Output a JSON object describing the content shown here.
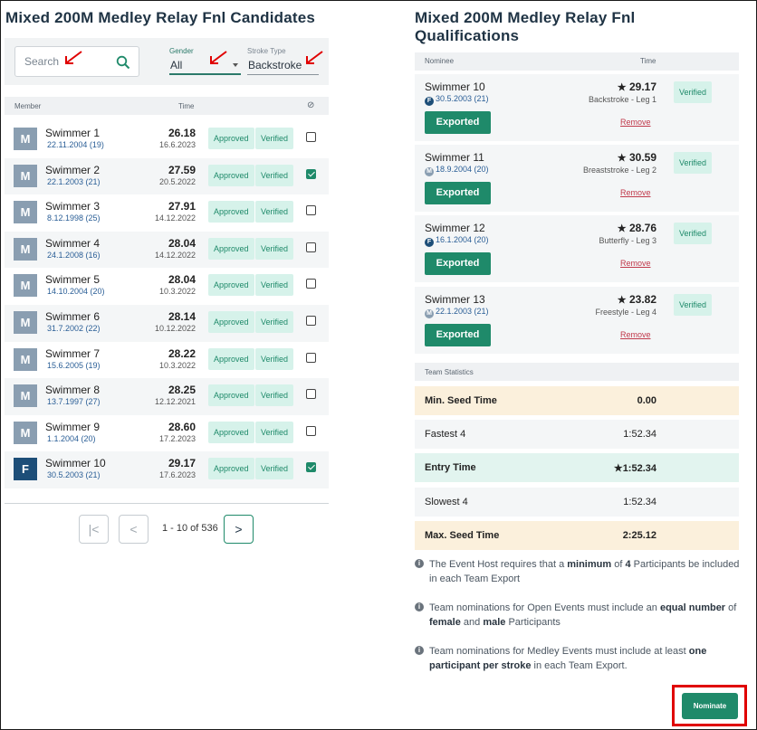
{
  "candidates": {
    "title": "Mixed 200M Medley Relay Fnl Candidates",
    "search_placeholder": "Search",
    "gender": {
      "label": "Gender",
      "value": "All"
    },
    "stroke": {
      "label": "Stroke Type",
      "value": "Backstroke"
    },
    "columns": {
      "member": "Member",
      "time": "Time",
      "exclude_symbol": "⊘"
    },
    "rows": [
      {
        "initial": "M",
        "name": "Swimmer 1",
        "dob": "22.11.2004 (19)",
        "time": "26.18",
        "date": "16.6.2023",
        "status": "Approved",
        "verified": "Verified",
        "checked": false
      },
      {
        "initial": "M",
        "name": "Swimmer 2",
        "dob": "22.1.2003 (21)",
        "time": "27.59",
        "date": "20.5.2022",
        "status": "Approved",
        "verified": "Verified",
        "checked": true
      },
      {
        "initial": "M",
        "name": "Swimmer 3",
        "dob": "8.12.1998 (25)",
        "time": "27.91",
        "date": "14.12.2022",
        "status": "Approved",
        "verified": "Verified",
        "checked": false
      },
      {
        "initial": "M",
        "name": "Swimmer 4",
        "dob": "24.1.2008 (16)",
        "time": "28.04",
        "date": "14.12.2022",
        "status": "Approved",
        "verified": "Verified",
        "checked": false
      },
      {
        "initial": "M",
        "name": "Swimmer 5",
        "dob": "14.10.2004 (20)",
        "time": "28.04",
        "date": "10.3.2022",
        "status": "Approved",
        "verified": "Verified",
        "checked": false
      },
      {
        "initial": "M",
        "name": "Swimmer 6",
        "dob": "31.7.2002 (22)",
        "time": "28.14",
        "date": "10.12.2022",
        "status": "Approved",
        "verified": "Verified",
        "checked": false
      },
      {
        "initial": "M",
        "name": "Swimmer 7",
        "dob": "15.6.2005 (19)",
        "time": "28.22",
        "date": "10.3.2022",
        "status": "Approved",
        "verified": "Verified",
        "checked": false
      },
      {
        "initial": "M",
        "name": "Swimmer 8",
        "dob": "13.7.1997 (27)",
        "time": "28.25",
        "date": "12.12.2021",
        "status": "Approved",
        "verified": "Verified",
        "checked": false
      },
      {
        "initial": "M",
        "name": "Swimmer 9",
        "dob": "1.1.2004 (20)",
        "time": "28.60",
        "date": "17.2.2023",
        "status": "Approved",
        "verified": "Verified",
        "checked": false
      },
      {
        "initial": "F",
        "name": "Swimmer 10",
        "dob": "30.5.2003 (21)",
        "time": "29.17",
        "date": "17.6.2023",
        "status": "Approved",
        "verified": "Verified",
        "checked": true
      }
    ],
    "pagination": {
      "first": "|<",
      "prev": "<",
      "info": "1 - 10 of 536",
      "next": ">"
    }
  },
  "qualifications": {
    "title": "Mixed 200M Medley Relay Fnl Qualifications",
    "columns": {
      "nominee": "Nominee",
      "time": "Time"
    },
    "nominees": [
      {
        "name": "Swimmer 10",
        "gender": "F",
        "dob": "30.5.2003 (21)",
        "time": "29.17",
        "leg": "Backstroke - Leg 1",
        "exported": "Exported",
        "remove": "Remove",
        "verified": "Verified"
      },
      {
        "name": "Swimmer 11",
        "gender": "M",
        "dob": "18.9.2004 (20)",
        "time": "30.59",
        "leg": "Breaststroke - Leg 2",
        "exported": "Exported",
        "remove": "Remove",
        "verified": "Verified"
      },
      {
        "name": "Swimmer 12",
        "gender": "F",
        "dob": "16.1.2004 (20)",
        "time": "28.76",
        "leg": "Butterfly - Leg 3",
        "exported": "Exported",
        "remove": "Remove",
        "verified": "Verified"
      },
      {
        "name": "Swimmer 13",
        "gender": "M",
        "dob": "22.1.2003 (21)",
        "time": "23.82",
        "leg": "Freestyle - Leg 4",
        "exported": "Exported",
        "remove": "Remove",
        "verified": "Verified"
      }
    ],
    "stats_header": "Team Statistics",
    "stats": [
      {
        "label": "Min. Seed Time",
        "value": "0.00"
      },
      {
        "label": "Fastest 4",
        "value": "1:52.34"
      },
      {
        "label": "Entry Time",
        "value": "1:52.34"
      },
      {
        "label": "Slowest 4",
        "value": "1:52.34"
      },
      {
        "label": "Max. Seed Time",
        "value": "2:25.12"
      }
    ],
    "notes": [
      {
        "a": "The Event Host requires that a ",
        "b": "minimum",
        "c": " of ",
        "d": "4",
        "e": " Participants be included in each Team Export"
      },
      {
        "a": "Team nominations for Open Events must include an ",
        "b": "equal number",
        "c": " of ",
        "d": "female",
        "e": " and ",
        "f": "male",
        "g": " Participants"
      },
      {
        "a": "Team nominations for Medley Events must include at least ",
        "b": "one participant per stroke",
        "c": " in each Team Export."
      }
    ],
    "nominate_label": "Nominate"
  },
  "colors": {
    "accent": "#1f8a6a",
    "badge_bg": "#d6f2ea",
    "remove": "#c0394b",
    "highlight": "#e00000",
    "arrow": "#e00000"
  }
}
